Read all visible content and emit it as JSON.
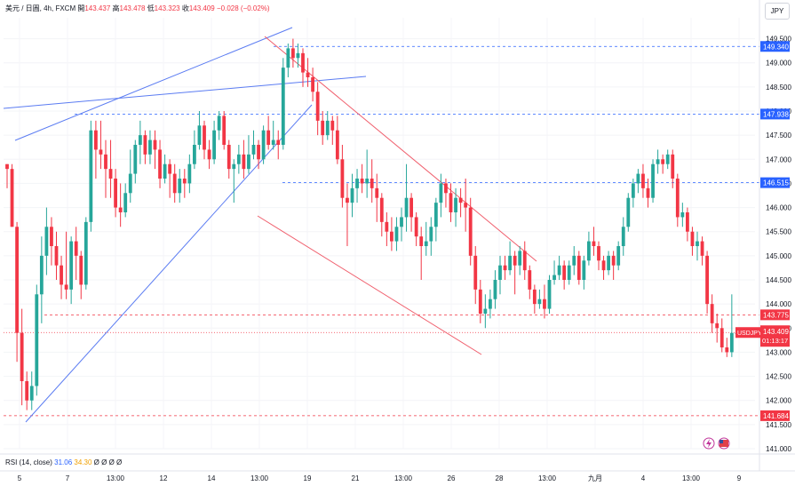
{
  "header": {
    "symbol": "美元 / 日圓, 4h, FXCM",
    "open_label": "開",
    "open": "143.437",
    "high_label": "高",
    "high": "143.478",
    "low_label": "低",
    "low": "143.323",
    "close_label": "收",
    "close": "143.409",
    "change": "−0.028 (−0.02%)"
  },
  "currency_button": "JPY",
  "rsi_legend": {
    "label": "RSI (14, close)",
    "value1": "31.06",
    "value2": "34.30",
    "extras": "Ø Ø Ø Ø"
  },
  "colors": {
    "up": "#26a69a",
    "down": "#f23645",
    "blue_line": "#5b7cf2",
    "blue_level": "#2962ff",
    "red_line": "#f0606e",
    "price_tag": "#f23645"
  },
  "chart_data": {
    "type": "candlestick",
    "y_axis": {
      "range": [
        141.0,
        149.75
      ],
      "ticks": [
        "149.500",
        "149.000",
        "148.500",
        "148.000",
        "147.500",
        "147.000",
        "146.500",
        "146.000",
        "145.500",
        "145.000",
        "144.500",
        "144.000",
        "143.500",
        "143.000",
        "142.500",
        "142.000",
        "141.500",
        "141.000"
      ]
    },
    "x_axis": {
      "labels": [
        "5",
        "7",
        "13:00",
        "12",
        "14",
        "13:00",
        "19",
        "21",
        "13:00",
        "26",
        "28",
        "13:00",
        "九月",
        "4",
        "13:00",
        "9"
      ]
    },
    "candles": [
      [
        146.9,
        146.8,
        146.9,
        146.4
      ],
      [
        146.8,
        145.6,
        146.9,
        145.6
      ],
      [
        145.6,
        143.4,
        145.7,
        142.8
      ],
      [
        143.4,
        142.4,
        143.9,
        141.9
      ],
      [
        142.4,
        142.0,
        142.6,
        141.8
      ],
      [
        142.0,
        142.3,
        142.6,
        141.8
      ],
      [
        142.3,
        144.2,
        144.4,
        142.1
      ],
      [
        144.2,
        145.0,
        145.4,
        143.6
      ],
      [
        145.0,
        145.6,
        146.0,
        144.6
      ],
      [
        145.6,
        145.2,
        145.8,
        144.8
      ],
      [
        145.2,
        144.8,
        145.5,
        144.5
      ],
      [
        144.8,
        144.4,
        145.0,
        144.1
      ],
      [
        144.4,
        144.3,
        145.5,
        144.1
      ],
      [
        144.3,
        145.3,
        145.4,
        144.0
      ],
      [
        145.3,
        145.0,
        145.6,
        144.5
      ],
      [
        145.0,
        144.4,
        145.1,
        144.1
      ],
      [
        144.4,
        145.7,
        145.8,
        144.3
      ],
      [
        145.7,
        147.6,
        147.8,
        145.5
      ],
      [
        147.6,
        147.2,
        147.8,
        146.6
      ],
      [
        147.2,
        147.1,
        147.8,
        146.8
      ],
      [
        147.1,
        146.8,
        147.4,
        146.2
      ],
      [
        146.8,
        146.6,
        147.4,
        146.2
      ],
      [
        146.6,
        146.0,
        146.8,
        145.8
      ],
      [
        146.0,
        145.9,
        146.5,
        145.6
      ],
      [
        145.9,
        146.3,
        146.5,
        145.8
      ],
      [
        146.3,
        146.7,
        147.2,
        146.1
      ],
      [
        146.7,
        147.3,
        147.4,
        146.5
      ],
      [
        147.3,
        147.5,
        147.8,
        146.9
      ],
      [
        147.5,
        147.1,
        147.6,
        146.9
      ],
      [
        147.1,
        147.4,
        147.6,
        146.9
      ],
      [
        147.4,
        147.2,
        147.6,
        146.8
      ],
      [
        147.2,
        146.6,
        147.4,
        146.4
      ],
      [
        146.6,
        146.9,
        147.1,
        146.5
      ],
      [
        146.9,
        146.7,
        147.0,
        146.2
      ],
      [
        146.7,
        146.3,
        146.9,
        146.1
      ],
      [
        146.3,
        146.6,
        146.8,
        146.1
      ],
      [
        146.6,
        146.5,
        146.8,
        146.2
      ],
      [
        146.5,
        146.9,
        147.1,
        146.3
      ],
      [
        146.9,
        147.3,
        147.6,
        146.8
      ],
      [
        147.3,
        147.7,
        148.0,
        147.2
      ],
      [
        147.7,
        147.2,
        147.8,
        147.0
      ],
      [
        147.2,
        147.0,
        147.4,
        146.8
      ],
      [
        147.0,
        147.6,
        147.8,
        146.9
      ],
      [
        147.6,
        147.9,
        148.0,
        147.4
      ],
      [
        147.9,
        147.3,
        148.0,
        147.2
      ],
      [
        147.3,
        146.8,
        147.4,
        146.6
      ],
      [
        146.8,
        146.9,
        147.0,
        146.1
      ],
      [
        146.9,
        147.1,
        147.3,
        146.7
      ],
      [
        147.1,
        146.8,
        147.4,
        146.6
      ],
      [
        146.8,
        147.1,
        147.5,
        146.7
      ],
      [
        147.1,
        147.3,
        147.6,
        147.0
      ],
      [
        147.3,
        147.0,
        147.4,
        146.8
      ],
      [
        147.0,
        147.6,
        147.7,
        146.9
      ],
      [
        147.6,
        147.3,
        147.9,
        147.2
      ],
      [
        147.3,
        147.4,
        147.8,
        147.2
      ],
      [
        147.4,
        147.3,
        147.6,
        147.0
      ],
      [
        147.3,
        148.9,
        149.1,
        147.2
      ],
      [
        148.9,
        149.3,
        149.4,
        148.7
      ],
      [
        149.3,
        149.1,
        149.5,
        148.9
      ],
      [
        149.1,
        149.2,
        149.4,
        148.9
      ],
      [
        149.2,
        148.8,
        149.3,
        148.5
      ],
      [
        148.8,
        148.7,
        149.1,
        148.5
      ],
      [
        148.7,
        148.4,
        148.9,
        148.2
      ],
      [
        148.4,
        147.8,
        148.6,
        147.5
      ],
      [
        147.8,
        147.5,
        148.0,
        147.3
      ],
      [
        147.5,
        147.8,
        148.0,
        147.4
      ],
      [
        147.8,
        147.6,
        147.9,
        147.3
      ],
      [
        147.6,
        147.0,
        147.9,
        146.9
      ],
      [
        147.0,
        146.2,
        147.3,
        146.0
      ],
      [
        146.2,
        146.1,
        146.5,
        145.2
      ],
      [
        146.1,
        146.4,
        146.7,
        145.8
      ],
      [
        146.4,
        146.6,
        146.8,
        146.1
      ],
      [
        146.6,
        146.5,
        146.9,
        146.3
      ],
      [
        146.5,
        146.6,
        147.2,
        146.2
      ],
      [
        146.6,
        146.4,
        147.0,
        146.1
      ],
      [
        146.4,
        146.2,
        146.7,
        145.7
      ],
      [
        146.2,
        145.7,
        146.3,
        145.4
      ],
      [
        145.7,
        145.5,
        145.9,
        145.2
      ],
      [
        145.5,
        145.3,
        145.8,
        145.1
      ],
      [
        145.3,
        145.6,
        145.8,
        145.1
      ],
      [
        145.6,
        145.8,
        146.0,
        145.3
      ],
      [
        145.8,
        146.2,
        146.9,
        145.5
      ],
      [
        146.2,
        145.8,
        146.3,
        145.5
      ],
      [
        145.8,
        145.4,
        145.9,
        145.2
      ],
      [
        145.4,
        145.2,
        145.6,
        144.5
      ],
      [
        145.2,
        145.3,
        145.7,
        145.0
      ],
      [
        145.3,
        145.6,
        145.8,
        145.0
      ],
      [
        145.6,
        146.1,
        146.2,
        145.3
      ],
      [
        146.1,
        146.5,
        146.7,
        145.8
      ],
      [
        146.5,
        146.3,
        146.6,
        146.0
      ],
      [
        146.3,
        145.9,
        146.5,
        145.7
      ],
      [
        145.9,
        146.2,
        146.4,
        145.6
      ],
      [
        146.2,
        146.1,
        146.4,
        145.8
      ],
      [
        146.1,
        146.0,
        146.6,
        145.5
      ],
      [
        146.0,
        145.0,
        146.2,
        144.8
      ],
      [
        145.0,
        144.3,
        145.2,
        144.0
      ],
      [
        144.3,
        143.8,
        144.5,
        143.6
      ],
      [
        143.8,
        143.9,
        144.2,
        143.5
      ],
      [
        143.9,
        144.1,
        144.3,
        143.7
      ],
      [
        144.1,
        144.5,
        144.7,
        143.9
      ],
      [
        144.5,
        144.8,
        145.0,
        144.2
      ],
      [
        144.8,
        144.7,
        145.0,
        144.5
      ],
      [
        144.7,
        145.0,
        145.3,
        144.6
      ],
      [
        145.0,
        144.8,
        145.1,
        144.2
      ],
      [
        144.8,
        145.1,
        145.2,
        144.6
      ],
      [
        145.1,
        144.7,
        145.3,
        144.5
      ],
      [
        144.7,
        144.3,
        144.8,
        144.1
      ],
      [
        144.3,
        144.0,
        144.4,
        143.8
      ],
      [
        144.0,
        144.1,
        144.3,
        143.9
      ],
      [
        144.1,
        143.9,
        144.4,
        143.7
      ],
      [
        143.9,
        144.5,
        144.6,
        143.8
      ],
      [
        144.5,
        144.6,
        144.9,
        144.4
      ],
      [
        144.6,
        144.8,
        145.0,
        144.5
      ],
      [
        144.8,
        144.5,
        144.9,
        144.3
      ],
      [
        144.5,
        144.8,
        144.9,
        144.4
      ],
      [
        144.8,
        145.0,
        145.2,
        144.6
      ],
      [
        145.0,
        144.5,
        145.1,
        144.4
      ],
      [
        144.5,
        144.9,
        145.0,
        144.3
      ],
      [
        144.9,
        145.3,
        145.5,
        144.8
      ],
      [
        145.3,
        145.2,
        145.6,
        145.0
      ],
      [
        145.2,
        144.9,
        145.3,
        144.7
      ],
      [
        144.9,
        144.7,
        145.0,
        144.5
      ],
      [
        144.7,
        145.0,
        145.1,
        144.6
      ],
      [
        145.0,
        144.8,
        145.1,
        144.5
      ],
      [
        144.8,
        145.2,
        145.3,
        144.7
      ],
      [
        145.2,
        145.6,
        145.8,
        145.0
      ],
      [
        145.6,
        146.2,
        146.3,
        145.5
      ],
      [
        146.2,
        146.5,
        146.6,
        146.0
      ],
      [
        146.5,
        146.7,
        146.8,
        146.3
      ],
      [
        146.7,
        146.4,
        146.9,
        146.2
      ],
      [
        146.4,
        146.2,
        146.6,
        146.0
      ],
      [
        146.2,
        146.9,
        147.0,
        146.1
      ],
      [
        146.9,
        147.0,
        147.2,
        146.7
      ],
      [
        147.0,
        146.9,
        147.1,
        146.7
      ],
      [
        146.9,
        147.1,
        147.2,
        146.8
      ],
      [
        147.1,
        146.6,
        147.2,
        146.4
      ],
      [
        146.6,
        145.8,
        146.7,
        145.6
      ],
      [
        145.8,
        145.9,
        146.1,
        145.6
      ],
      [
        145.9,
        145.5,
        146.0,
        145.3
      ],
      [
        145.5,
        145.2,
        145.6,
        145.0
      ],
      [
        145.2,
        145.3,
        145.5,
        144.9
      ],
      [
        145.3,
        145.0,
        145.4,
        144.8
      ],
      [
        145.0,
        144.0,
        145.1,
        143.8
      ],
      [
        144.0,
        143.6,
        144.2,
        143.4
      ],
      [
        143.6,
        143.5,
        143.8,
        143.2
      ],
      [
        143.5,
        143.1,
        143.7,
        143.0
      ],
      [
        143.1,
        143.0,
        143.3,
        142.9
      ],
      [
        143.0,
        143.4,
        144.2,
        142.9
      ],
      [
        143.4,
        143.4,
        143.5,
        143.3
      ]
    ],
    "levels": [
      {
        "price": 149.34,
        "label": "149.340",
        "color": "blue"
      },
      {
        "price": 147.938,
        "label": "147.938",
        "color": "blue"
      },
      {
        "price": 146.515,
        "label": "146.515",
        "color": "blue"
      },
      {
        "price": 143.775,
        "label": "143.775",
        "color": "red"
      },
      {
        "price": 141.684,
        "label": "141.684",
        "color": "red"
      }
    ],
    "current": {
      "price": 143.409,
      "label": "143.409",
      "symbol": "USDJPY",
      "countdown": "01:13:17"
    }
  }
}
